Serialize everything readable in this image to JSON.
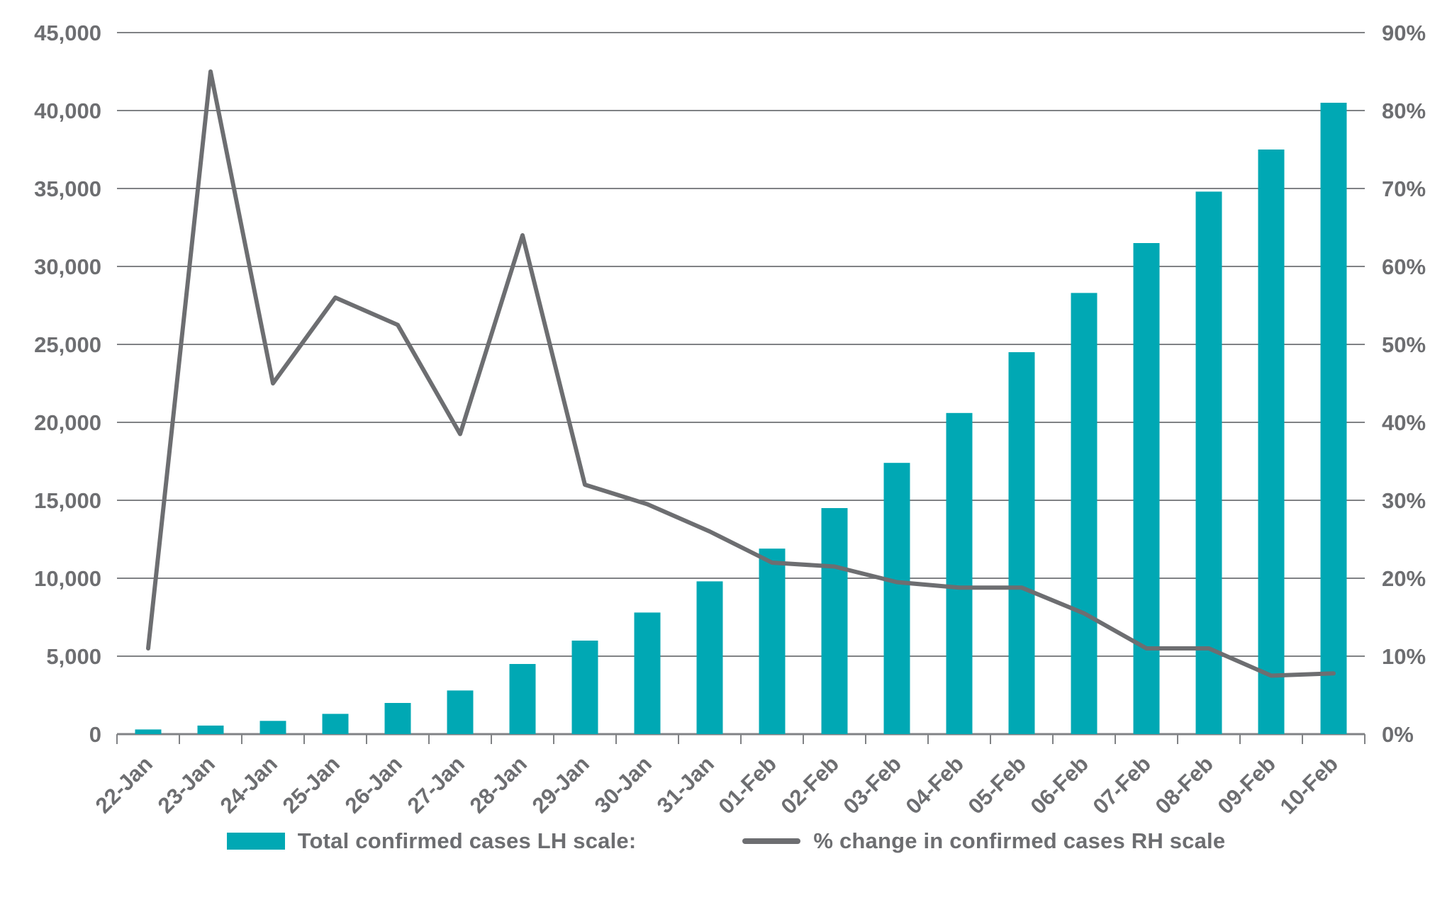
{
  "colors": {
    "bar": "#00a8b4",
    "line": "#6d6e71",
    "gridline": "#808285",
    "axis_text": "#6d6e71",
    "background": "#ffffff"
  },
  "chart_data": {
    "type": "combo",
    "title": "",
    "categories": [
      "22-Jan",
      "23-Jan",
      "24-Jan",
      "25-Jan",
      "26-Jan",
      "27-Jan",
      "28-Jan",
      "29-Jan",
      "30-Jan",
      "31-Jan",
      "01-Feb",
      "02-Feb",
      "03-Feb",
      "04-Feb",
      "05-Feb",
      "06-Feb",
      "07-Feb",
      "08-Feb",
      "09-Feb",
      "10-Feb"
    ],
    "series": [
      {
        "name": "Total confirmed cases LH scale:",
        "type": "bar",
        "axis": "left",
        "color": "#00a8b4",
        "values": [
          300,
          550,
          850,
          1300,
          2000,
          2800,
          4500,
          6000,
          7800,
          9800,
          11900,
          14500,
          17400,
          20600,
          24500,
          28300,
          31500,
          34800,
          37500,
          40500
        ]
      },
      {
        "name": "% change in confirmed cases RH scale",
        "type": "line",
        "axis": "right",
        "color": "#6d6e71",
        "values": [
          11,
          85,
          45,
          56,
          52.5,
          38.5,
          64,
          32,
          29.5,
          26,
          22,
          21.5,
          19.5,
          18.8,
          18.8,
          15.5,
          11,
          11,
          7.5,
          7.8
        ]
      }
    ],
    "left_axis": {
      "min": 0,
      "max": 45000,
      "step": 5000,
      "tick_labels": [
        "0",
        "5,000",
        "10,000",
        "15,000",
        "20,000",
        "25,000",
        "30,000",
        "35,000",
        "40,000",
        "45,000"
      ]
    },
    "right_axis": {
      "min": 0,
      "max": 90,
      "step": 10,
      "tick_labels": [
        "0%",
        "10%",
        "20%",
        "30%",
        "40%",
        "50%",
        "60%",
        "70%",
        "80%",
        "90%"
      ]
    },
    "grid": true,
    "legend_position": "bottom"
  }
}
